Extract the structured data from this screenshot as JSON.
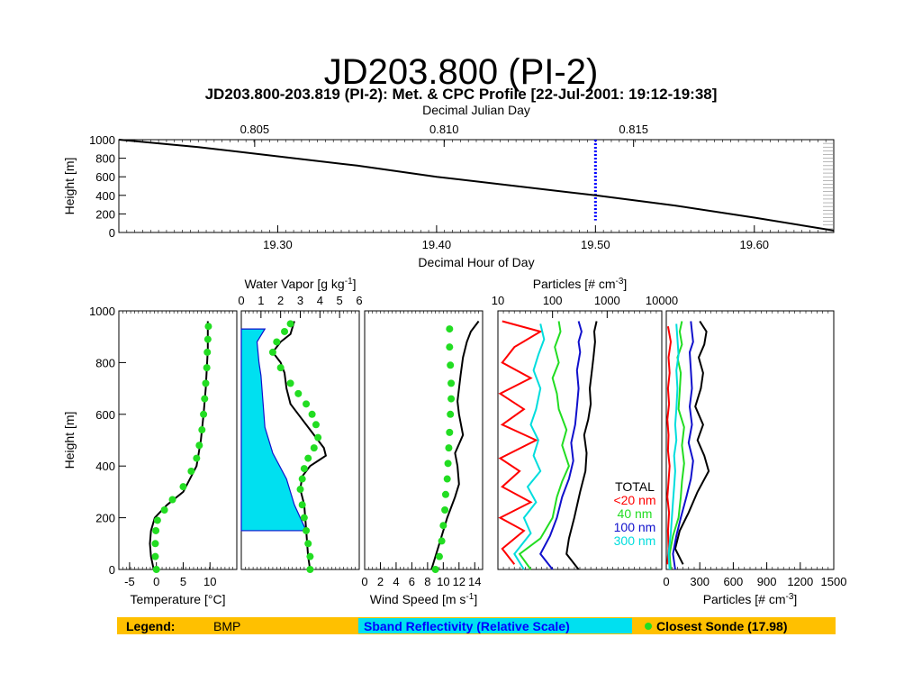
{
  "slide": {
    "title": "JD203.800 (PI-2)"
  },
  "figure": {
    "title": "JD203.800-203.819 (PI-2): Met. & CPC Profile [22-Jul-2001: 19:12-19:38]"
  },
  "legend": {
    "label": "Legend:",
    "bmp": "BMP",
    "sband": "Sband Reflectivity (Relative Scale)",
    "sonde": "Closest Sonde (17.98)",
    "colors": {
      "bar": "#ffc000",
      "sband_box": "#00e0f0",
      "sband_text": "#0000ff",
      "sonde": "#22dd22"
    }
  },
  "chart_data": [
    {
      "id": "flight_height",
      "type": "line",
      "xlabel": "Decimal Hour of Day",
      "x_ticks": [
        "19.30",
        "19.40",
        "19.50",
        "19.60"
      ],
      "x2label": "Decimal Julian Day",
      "x2_ticks": [
        "0.805",
        "0.810",
        "0.815"
      ],
      "ylabel": "Height [m]",
      "y_ticks": [
        "1000",
        "800",
        "600",
        "400",
        "200",
        "0"
      ],
      "xlim": [
        19.2,
        19.65
      ],
      "ylim": [
        0,
        1000
      ],
      "series": [
        {
          "color": "#000000",
          "x": [
            19.2,
            19.25,
            19.3,
            19.35,
            19.4,
            19.45,
            19.5,
            19.55,
            19.6,
            19.65
          ],
          "y": [
            1000,
            920,
            820,
            720,
            600,
            500,
            400,
            290,
            160,
            20
          ]
        }
      ],
      "marker_x": 19.5,
      "marker_color": "#0000ff"
    },
    {
      "id": "temperature",
      "type": "line",
      "xlabel": "Temperature [°C]",
      "x_ticks": [
        "-5",
        "0",
        "5",
        "10"
      ],
      "ylabel": "Height [m]",
      "y_ticks": [
        "1000",
        "800",
        "600",
        "400",
        "200",
        "0"
      ],
      "xlim": [
        -7,
        15
      ],
      "ylim": [
        0,
        1000
      ],
      "series": [
        {
          "color": "#000000",
          "x": [
            -0.5,
            -1,
            -1.2,
            -1,
            -0.3,
            2,
            5,
            7.5,
            8.3,
            8.8,
            9.2,
            9.6,
            9.6
          ],
          "y": [
            0,
            50,
            100,
            150,
            200,
            250,
            300,
            400,
            500,
            600,
            700,
            850,
            960
          ]
        },
        {
          "color": "#22dd22",
          "kind": "dots",
          "x": [
            0,
            -0.2,
            -0.2,
            -0.1,
            0.2,
            1.5,
            3,
            5,
            6.5,
            7.5,
            8,
            8.5,
            8.8,
            9,
            9.2,
            9.4,
            9.5,
            9.6,
            9.7
          ],
          "y": [
            0,
            50,
            100,
            150,
            190,
            230,
            270,
            320,
            380,
            430,
            480,
            540,
            600,
            660,
            720,
            780,
            840,
            890,
            940
          ]
        }
      ]
    },
    {
      "id": "water_vapor",
      "type": "line",
      "x2label": "Water Vapor [g kg-1]",
      "x2_ticks": [
        "0",
        "1",
        "2",
        "3",
        "4",
        "5",
        "6"
      ],
      "xlim": [
        0,
        6
      ],
      "ylim": [
        0,
        1000
      ],
      "series": [
        {
          "color": "#000000",
          "x": [
            3.5,
            3.4,
            3.3,
            3.2,
            3.0,
            3.1,
            3.5,
            3.9,
            4.3,
            4.2,
            3.6,
            3.0,
            2.5,
            2.3,
            2.2,
            2.0,
            1.6,
            2.0,
            2.5,
            2.7
          ],
          "y": [
            0,
            50,
            150,
            250,
            310,
            360,
            400,
            420,
            440,
            470,
            530,
            590,
            640,
            700,
            760,
            800,
            840,
            880,
            910,
            960
          ]
        },
        {
          "color": "#22dd22",
          "kind": "dots",
          "x": [
            3.5,
            3.5,
            3.4,
            3.3,
            3.2,
            3.1,
            3.0,
            3.1,
            3.2,
            3.4,
            3.7,
            3.9,
            3.8,
            3.6,
            3.3,
            2.9,
            2.5,
            2.0,
            1.6,
            1.8,
            2.2,
            2.5
          ],
          "y": [
            0,
            50,
            100,
            150,
            200,
            250,
            310,
            350,
            390,
            430,
            470,
            510,
            560,
            600,
            640,
            680,
            720,
            780,
            840,
            880,
            920,
            950
          ]
        }
      ],
      "sband_fill": {
        "color": "#00e0f0",
        "x": [
          3.3,
          2.7,
          2.3,
          1.6,
          1.2,
          1.1,
          1.0,
          0.9,
          0.8,
          1.2
        ],
        "y": [
          150,
          250,
          350,
          450,
          550,
          650,
          750,
          800,
          880,
          930
        ]
      }
    },
    {
      "id": "wind_speed",
      "type": "line",
      "xlabel": "Wind Speed [m s-1]",
      "x_ticks": [
        "0",
        "2",
        "4",
        "6",
        "8",
        "10",
        "12",
        "14"
      ],
      "xlim": [
        0,
        15
      ],
      "ylim": [
        0,
        1000
      ],
      "series": [
        {
          "color": "#000000",
          "x": [
            8.5,
            9.5,
            10.5,
            11.5,
            12,
            11.8,
            11.5,
            12.5,
            12,
            11.8,
            12,
            12.2,
            12.5,
            13,
            13.5,
            14.5
          ],
          "y": [
            0,
            100,
            200,
            280,
            330,
            400,
            450,
            520,
            600,
            650,
            700,
            750,
            820,
            880,
            920,
            960
          ]
        },
        {
          "color": "#22dd22",
          "kind": "dots",
          "x": [
            9,
            9.5,
            9.8,
            10,
            10.2,
            10.3,
            10.5,
            10.6,
            10.7,
            10.8,
            10.9,
            11,
            11,
            10.9,
            10.8,
            10.8
          ],
          "y": [
            0,
            50,
            110,
            170,
            230,
            290,
            350,
            410,
            470,
            530,
            600,
            660,
            720,
            790,
            860,
            930
          ]
        }
      ]
    },
    {
      "id": "particles_log",
      "type": "line",
      "x2label": "Particles [# cm-3]",
      "x2_ticks": [
        "10",
        "100",
        "1000",
        "10000"
      ],
      "xscale": "log",
      "xlim": [
        10,
        10000
      ],
      "ylim": [
        0,
        1000
      ],
      "series": [
        {
          "name": "TOTAL",
          "color": "#000000",
          "x": [
            300,
            180,
            200,
            250,
            320,
            400,
            420,
            380,
            450,
            500,
            480,
            520,
            560,
            600,
            580,
            640
          ],
          "y": [
            0,
            60,
            120,
            200,
            300,
            380,
            450,
            520,
            580,
            640,
            700,
            760,
            820,
            880,
            920,
            960
          ]
        },
        {
          "name": "<20 nm",
          "color": "#ff0000",
          "x": [
            20,
            12,
            30,
            11,
            40,
            12,
            25,
            11,
            50,
            12,
            30,
            11,
            40,
            12,
            20,
            60,
            12
          ],
          "y": [
            20,
            80,
            150,
            200,
            260,
            320,
            380,
            430,
            500,
            560,
            620,
            680,
            740,
            800,
            860,
            920,
            960
          ]
        },
        {
          "name": "40 nm",
          "color": "#22dd22",
          "x": [
            40,
            25,
            60,
            100,
            120,
            150,
            200,
            150,
            180,
            130,
            120,
            100,
            130,
            110,
            140,
            130
          ],
          "y": [
            0,
            60,
            120,
            200,
            280,
            340,
            400,
            480,
            540,
            620,
            680,
            740,
            800,
            860,
            920,
            960
          ]
        },
        {
          "name": "100 nm",
          "color": "#1010cc",
          "x": [
            100,
            60,
            90,
            120,
            150,
            200,
            240,
            220,
            260,
            280,
            300,
            280,
            320,
            300,
            340,
            300
          ],
          "y": [
            0,
            60,
            130,
            200,
            280,
            350,
            420,
            490,
            560,
            630,
            700,
            770,
            840,
            880,
            920,
            960
          ]
        },
        {
          "name": "300 nm",
          "color": "#00dddd",
          "x": [
            30,
            20,
            40,
            30,
            50,
            35,
            60,
            45,
            55,
            40,
            50,
            60,
            45,
            55,
            70,
            60
          ],
          "y": [
            0,
            60,
            140,
            200,
            260,
            320,
            380,
            440,
            500,
            560,
            620,
            700,
            770,
            830,
            890,
            950
          ]
        }
      ],
      "legend": {
        "placement": "lower-right",
        "entries": [
          "TOTAL",
          "<20 nm",
          "40 nm",
          "100 nm",
          "300 nm"
        ]
      }
    },
    {
      "id": "particles_linear",
      "type": "line",
      "xlabel": "Particles [# cm-3]",
      "x_ticks": [
        "0",
        "300",
        "600",
        "900",
        "1200",
        "1500"
      ],
      "xlim": [
        0,
        1500
      ],
      "ylim": [
        0,
        1000
      ],
      "series": [
        {
          "name": "TOTAL",
          "color": "#000000",
          "x": [
            150,
            80,
            120,
            200,
            280,
            380,
            340,
            280,
            330,
            260,
            310,
            330,
            290,
            340,
            360,
            300
          ],
          "y": [
            20,
            80,
            150,
            220,
            300,
            380,
            440,
            500,
            560,
            630,
            700,
            760,
            820,
            870,
            920,
            960
          ]
        },
        {
          "name": "<20 nm",
          "color": "#ff0000",
          "x": [
            10,
            20,
            15,
            25,
            10,
            20,
            30,
            15,
            20,
            10,
            25,
            15,
            30,
            20,
            40,
            15
          ],
          "y": [
            20,
            80,
            150,
            220,
            280,
            340,
            400,
            460,
            520,
            580,
            640,
            700,
            760,
            820,
            880,
            940
          ]
        },
        {
          "name": "40 nm",
          "color": "#22dd22",
          "x": [
            40,
            30,
            60,
            110,
            130,
            140,
            160,
            140,
            160,
            110,
            120,
            130,
            100,
            140,
            120,
            140
          ],
          "y": [
            0,
            60,
            130,
            200,
            280,
            340,
            410,
            480,
            550,
            620,
            690,
            760,
            820,
            870,
            920,
            960
          ]
        },
        {
          "name": "100 nm",
          "color": "#1010cc",
          "x": [
            80,
            60,
            90,
            130,
            180,
            220,
            240,
            200,
            230,
            210,
            230,
            220,
            210,
            240,
            230,
            220
          ],
          "y": [
            0,
            60,
            130,
            200,
            280,
            350,
            420,
            490,
            560,
            630,
            700,
            770,
            840,
            880,
            920,
            960
          ]
        },
        {
          "name": "300 nm",
          "color": "#00dddd",
          "x": [
            30,
            20,
            40,
            50,
            60,
            70,
            80,
            70,
            90,
            80,
            90,
            100,
            90,
            110,
            100,
            90
          ],
          "y": [
            0,
            60,
            140,
            200,
            260,
            320,
            380,
            440,
            500,
            560,
            620,
            700,
            770,
            830,
            890,
            950
          ]
        }
      ]
    }
  ]
}
